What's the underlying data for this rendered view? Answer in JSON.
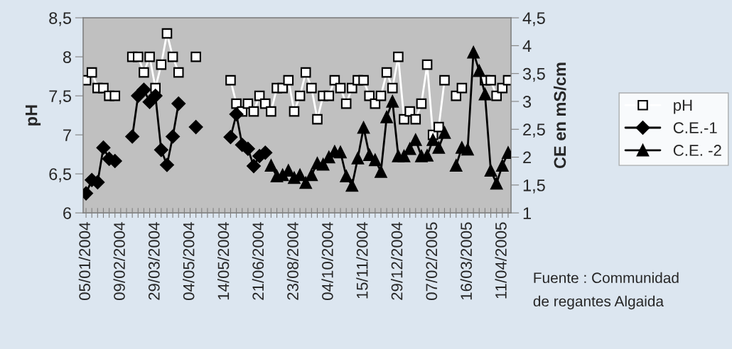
{
  "chart_data": {
    "type": "line",
    "categories": [
      "05/01/2004",
      null,
      null,
      null,
      null,
      null,
      "09/02/2004",
      null,
      null,
      null,
      null,
      null,
      "29/03/2004",
      null,
      null,
      null,
      null,
      null,
      "04/05/2004",
      null,
      null,
      null,
      null,
      null,
      "14/05/2004",
      null,
      null,
      null,
      null,
      null,
      "21/06/2004",
      null,
      null,
      null,
      null,
      null,
      "23/08/2004",
      null,
      null,
      null,
      null,
      null,
      "04/10/2004",
      null,
      null,
      null,
      null,
      null,
      "15/11/2004",
      null,
      null,
      null,
      null,
      null,
      "29/12/2004",
      null,
      null,
      null,
      null,
      null,
      "07/02/2005",
      null,
      null,
      null,
      null,
      null,
      "16/03/2005",
      null,
      null,
      null,
      null,
      null,
      "11/04/2005",
      null
    ],
    "series": [
      {
        "name": "pH",
        "color": "#ffffff",
        "marker": "square",
        "values": [
          7.7,
          7.8,
          7.6,
          7.6,
          7.5,
          7.5,
          null,
          null,
          8.0,
          8.0,
          7.8,
          8.0,
          7.6,
          7.9,
          8.3,
          8.0,
          7.8,
          null,
          null,
          8.0,
          null,
          null,
          null,
          null,
          null,
          7.7,
          7.4,
          7.3,
          7.4,
          7.3,
          7.5,
          7.4,
          7.3,
          7.6,
          7.6,
          7.7,
          7.3,
          7.5,
          7.8,
          7.6,
          7.2,
          7.5,
          7.5,
          7.7,
          7.6,
          7.4,
          7.6,
          7.7,
          7.7,
          7.5,
          7.4,
          7.5,
          7.8,
          7.6,
          8.0,
          7.2,
          7.3,
          7.2,
          7.4,
          7.9,
          7.0,
          7.1,
          7.7,
          null,
          7.5,
          7.6,
          null,
          null,
          null,
          7.7,
          7.7,
          7.5,
          7.6,
          7.7
        ]
      },
      {
        "name": "C.E.-1",
        "color": "#000000",
        "marker": "diamond",
        "axis": "y2",
        "values": [
          1.35,
          1.59,
          1.55,
          2.17,
          1.97,
          1.93,
          null,
          null,
          2.37,
          3.1,
          3.21,
          2.99,
          3.1,
          2.13,
          1.86,
          2.37,
          2.96,
          null,
          null,
          2.54,
          null,
          null,
          null,
          null,
          null,
          2.36,
          2.77,
          2.22,
          2.15,
          1.84,
          2.02,
          2.08,
          null,
          null,
          null,
          null,
          null,
          null,
          null,
          null,
          null,
          null,
          null,
          null,
          null,
          null,
          null,
          null,
          null,
          null,
          null,
          null,
          null,
          null,
          null,
          null,
          null,
          null,
          null,
          null,
          null,
          null,
          null,
          null,
          null,
          null,
          null,
          null,
          null,
          null,
          null,
          null,
          null,
          null
        ]
      },
      {
        "name": "C.E. -2",
        "color": "#000000",
        "marker": "triangle",
        "axis": "y2",
        "values": [
          null,
          null,
          null,
          null,
          null,
          null,
          null,
          null,
          null,
          null,
          null,
          null,
          null,
          null,
          null,
          null,
          null,
          null,
          null,
          null,
          null,
          null,
          null,
          null,
          null,
          null,
          null,
          null,
          null,
          null,
          null,
          null,
          1.85,
          1.66,
          1.68,
          1.76,
          1.63,
          1.68,
          1.54,
          1.68,
          1.89,
          1.87,
          2.0,
          2.1,
          2.09,
          1.66,
          1.49,
          1.98,
          2.53,
          2.04,
          1.95,
          1.74,
          2.72,
          3.0,
          2.02,
          2.02,
          2.15,
          2.31,
          2.02,
          2.03,
          2.31,
          2.17,
          2.44,
          null,
          1.85,
          2.17,
          2.14,
          3.88,
          3.55,
          3.13,
          1.76,
          1.53,
          1.85,
          2.08
        ]
      }
    ],
    "ylabel": "pH",
    "y2label": "CE en mS/cm",
    "ylim": [
      6,
      8.5
    ],
    "yticks": [
      6,
      {
        "value": 6.5,
        "label": "6,5"
      },
      7,
      {
        "value": 7.5,
        "label": "7,5"
      },
      8,
      {
        "value": 8.5,
        "label": "8,5"
      }
    ],
    "y2lim": [
      1,
      4.5
    ],
    "y2ticks": [
      1,
      {
        "value": 1.5,
        "label": "1,5"
      },
      2,
      {
        "value": 2.5,
        "label": "2,5"
      },
      3,
      {
        "value": 3.5,
        "label": "3,5"
      },
      4,
      {
        "value": 4.5,
        "label": "4,5"
      }
    ],
    "grid": false,
    "legend": "right",
    "annotations": [
      "Fuente : Communidad\nde regantes Algaida"
    ]
  }
}
